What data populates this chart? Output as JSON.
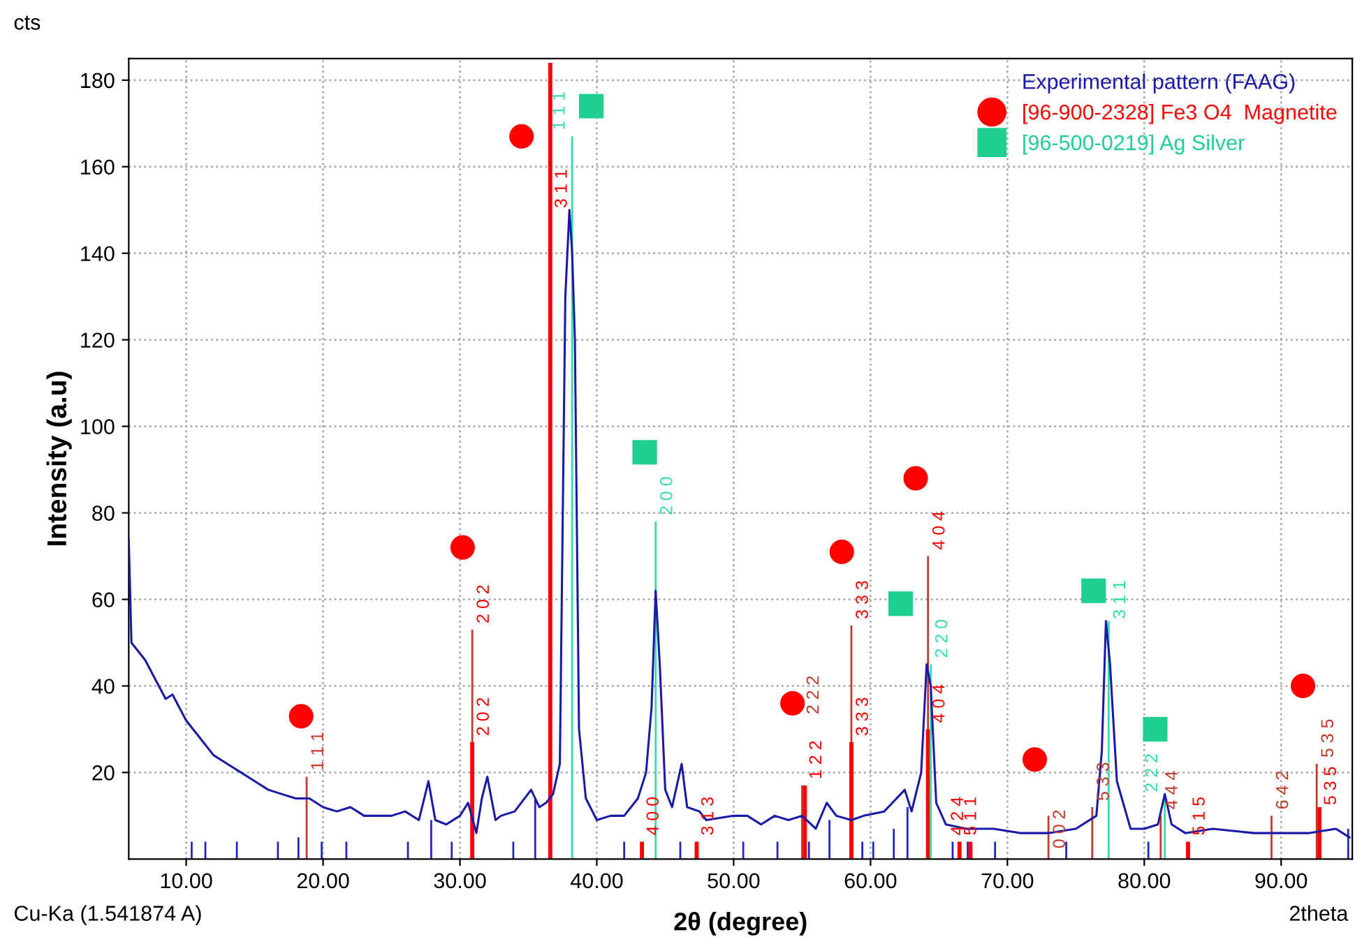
{
  "chart_data": {
    "type": "line",
    "xlabel": "2θ (degree)",
    "ylabel": "Intensity (a.u)",
    "xlim": [
      5.8,
      95.2
    ],
    "ylim": [
      0,
      185
    ],
    "xticks": [
      {
        "value": 10,
        "label": "10.00"
      },
      {
        "value": 20,
        "label": "20.00"
      },
      {
        "value": 30,
        "label": "30.00"
      },
      {
        "value": 40,
        "label": "40.00"
      },
      {
        "value": 50,
        "label": "50.00"
      },
      {
        "value": 60,
        "label": "60.00"
      },
      {
        "value": 70,
        "label": "70.00"
      },
      {
        "value": 80,
        "label": "80.00"
      },
      {
        "value": 90,
        "label": "90.00"
      }
    ],
    "yticks": [
      20,
      40,
      60,
      80,
      100,
      120,
      140,
      160,
      180
    ],
    "grid": true,
    "legend": "top right",
    "annotations": [
      "cts",
      "Cu-Ka (1.541874 A)",
      "2theta",
      {
        "text": "1 1 1",
        "x": 18.8,
        "y": 20
      },
      {
        "text": "2 0 2",
        "x": 30.9,
        "y": 54
      },
      {
        "text": "3 1 1",
        "x": 36.6,
        "y": 150
      },
      {
        "text": "2 2 2",
        "x": 55.0,
        "y": 33
      },
      {
        "text": "3 3 3",
        "x": 58.6,
        "y": 55
      },
      {
        "text": "4 0 4",
        "x": 64.2,
        "y": 71
      },
      {
        "text": "0 0 2",
        "x": 73.0,
        "y": 2
      },
      {
        "text": "5 3 3",
        "x": 76.2,
        "y": 13
      },
      {
        "text": "4 4 4",
        "x": 81.2,
        "y": 11
      },
      {
        "text": "6 4 2",
        "x": 89.3,
        "y": 11
      },
      {
        "text": "5 3 5",
        "x": 92.6,
        "y": 23
      },
      {
        "text": "2 0 2",
        "x": 30.9,
        "y": 28
      },
      {
        "text": "4 0 0",
        "x": 43.3,
        "y": 5
      },
      {
        "text": "3 1 3",
        "x": 47.3,
        "y": 5
      },
      {
        "text": "1 2 2",
        "x": 55.2,
        "y": 18
      },
      {
        "text": "3 3 3",
        "x": 58.6,
        "y": 28
      },
      {
        "text": "4 0 4",
        "x": 64.2,
        "y": 31
      },
      {
        "text": "5 1 1",
        "x": 66.5,
        "y": 5
      },
      {
        "text": "4 2 4",
        "x": 67.3,
        "y": 5
      },
      {
        "text": "5 1 5",
        "x": 83.2,
        "y": 5
      },
      {
        "text": "5 3 5",
        "x": 92.8,
        "y": 12
      },
      {
        "text": "1 1 1",
        "x": 38.2,
        "y": 168
      },
      {
        "text": "2 0 0",
        "x": 44.3,
        "y": 79
      },
      {
        "text": "2 2 0",
        "x": 64.4,
        "y": 46
      },
      {
        "text": "3 1 1",
        "x": 77.4,
        "y": 55
      },
      {
        "text": "2 2 2",
        "x": 81.5,
        "y": 15
      }
    ],
    "series": [
      {
        "name": "Experimental pattern (FAAG)",
        "color": "#1a1aa8",
        "x": [
          5.8,
          6.0,
          7,
          8,
          8.5,
          9,
          10,
          11,
          12,
          13,
          14,
          15,
          16,
          17,
          18,
          19,
          20,
          21,
          22,
          23,
          24,
          25,
          26,
          27,
          27.7,
          28.2,
          29,
          30,
          30.6,
          31.2,
          31.6,
          32.0,
          32.6,
          33,
          34,
          35.2,
          35.8,
          36.3,
          36.8,
          37.3,
          37.7,
          38.0,
          38.2,
          38.4,
          38.7,
          39.2,
          40,
          41,
          42,
          43,
          43.6,
          44.0,
          44.3,
          44.6,
          45,
          45.5,
          46.2,
          46.6,
          47.5,
          48,
          50,
          51,
          52,
          53,
          54,
          55,
          56,
          56.8,
          57.5,
          58.6,
          59.5,
          61,
          62.5,
          63,
          63.7,
          64.1,
          64.4,
          64.8,
          65.5,
          67,
          69,
          71,
          73,
          75,
          76.5,
          76.9,
          77.2,
          77.5,
          78,
          79,
          80,
          81,
          81.5,
          82,
          83,
          85,
          88,
          90,
          92,
          94,
          95
        ],
        "values": [
          74,
          50,
          46,
          40,
          37,
          38,
          32,
          28,
          24,
          22,
          20,
          18,
          16,
          15,
          14,
          14,
          12,
          11,
          12,
          10,
          10,
          10,
          11,
          9,
          18,
          9,
          8,
          10,
          13,
          6,
          14,
          19,
          9,
          10,
          11,
          16,
          12,
          13,
          15,
          22,
          130,
          150,
          140,
          120,
          30,
          14,
          9,
          10,
          10,
          14,
          20,
          35,
          62,
          45,
          16,
          12,
          22,
          12,
          11,
          9,
          10,
          10,
          8,
          10,
          9,
          10,
          7,
          13,
          10,
          9,
          10,
          11,
          16,
          11,
          20,
          45,
          40,
          13,
          8,
          7,
          7,
          6,
          6,
          7,
          10,
          25,
          55,
          45,
          18,
          7,
          7,
          8,
          15,
          8,
          6,
          7,
          6,
          6,
          6,
          7,
          5
        ]
      },
      {
        "type": "bar",
        "color": "#2222cc",
        "x": [
          10.4,
          11.4,
          13.7,
          16.7,
          18.2,
          19.9,
          21.7,
          26.2,
          27.9,
          29.4,
          33.9,
          35.5,
          42.0,
          46.1,
          50.7,
          53.2,
          55.5,
          57.0,
          59.4,
          60.2,
          61.7,
          62.7,
          66.0,
          67.1,
          69.1,
          74.3,
          80.3,
          94.9
        ],
        "values": [
          4,
          4,
          4,
          4,
          5,
          4,
          4,
          4,
          9,
          4,
          4,
          14,
          4,
          4,
          4,
          4,
          4,
          9,
          4,
          4,
          7,
          12,
          4,
          4,
          4,
          4,
          4,
          7
        ]
      },
      {
        "type": "bar",
        "color": "#c0392b",
        "x": [
          18.8,
          30.9,
          55.0,
          58.6,
          64.2,
          73.0,
          76.2,
          81.2,
          89.3,
          92.6
        ],
        "values": [
          19,
          53,
          17,
          54,
          70,
          10,
          12,
          10,
          10,
          22
        ]
      },
      {
        "type": "bar",
        "color": "#ff0000",
        "x": [
          30.9,
          36.6,
          43.3,
          47.3,
          55.2,
          58.6,
          64.2,
          66.5,
          67.3,
          83.2,
          92.8
        ],
        "values": [
          27,
          184,
          4,
          4,
          17,
          27,
          30,
          4,
          4,
          4,
          12
        ]
      },
      {
        "type": "bar",
        "color": "#33ddaa",
        "x": [
          38.2,
          44.3,
          64.4,
          77.4,
          81.5
        ],
        "values": [
          167,
          78,
          45,
          55,
          15
        ]
      },
      {
        "type": "scatter",
        "name": "[96-900-2328] Fe3 O4  Magnetite",
        "marker": "circle",
        "color": "#ff0000",
        "x": [
          18.4,
          30.2,
          34.5,
          54.3,
          57.9,
          63.3,
          72.0,
          91.6
        ],
        "values": [
          33,
          72,
          167,
          36,
          71,
          88,
          23,
          40
        ]
      },
      {
        "type": "scatter",
        "name": "[96-500-0219] Ag Silver",
        "marker": "square",
        "color": "#1ecf8f",
        "x": [
          39.6,
          43.5,
          62.2,
          76.3,
          80.8
        ],
        "values": [
          174,
          94,
          59,
          62,
          30
        ]
      }
    ]
  }
}
